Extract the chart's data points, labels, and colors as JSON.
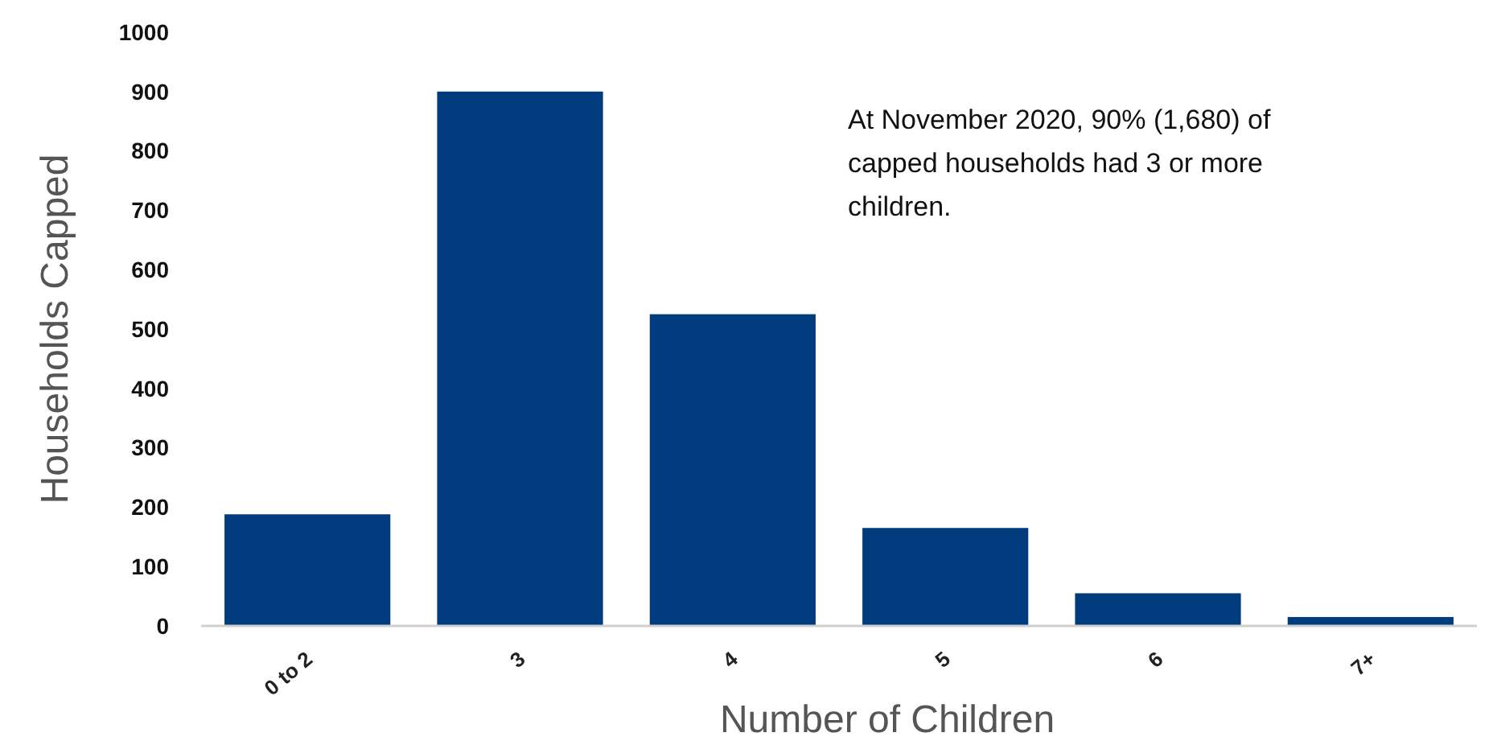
{
  "chart_data": {
    "type": "bar",
    "xlabel": "Number of Children",
    "ylabel": "Households Capped",
    "categories": [
      "0 to 2",
      "3",
      "4",
      "5",
      "6",
      "7+"
    ],
    "values": [
      188,
      900,
      525,
      165,
      55,
      15
    ],
    "color": "#003c7d",
    "ylim": [
      0,
      1000
    ],
    "yticks": [
      0,
      100,
      200,
      300,
      400,
      500,
      600,
      700,
      800,
      900,
      1000
    ],
    "annotations": [
      "At November 2020, 90% (1,680) of capped households had 3 or more children."
    ]
  }
}
